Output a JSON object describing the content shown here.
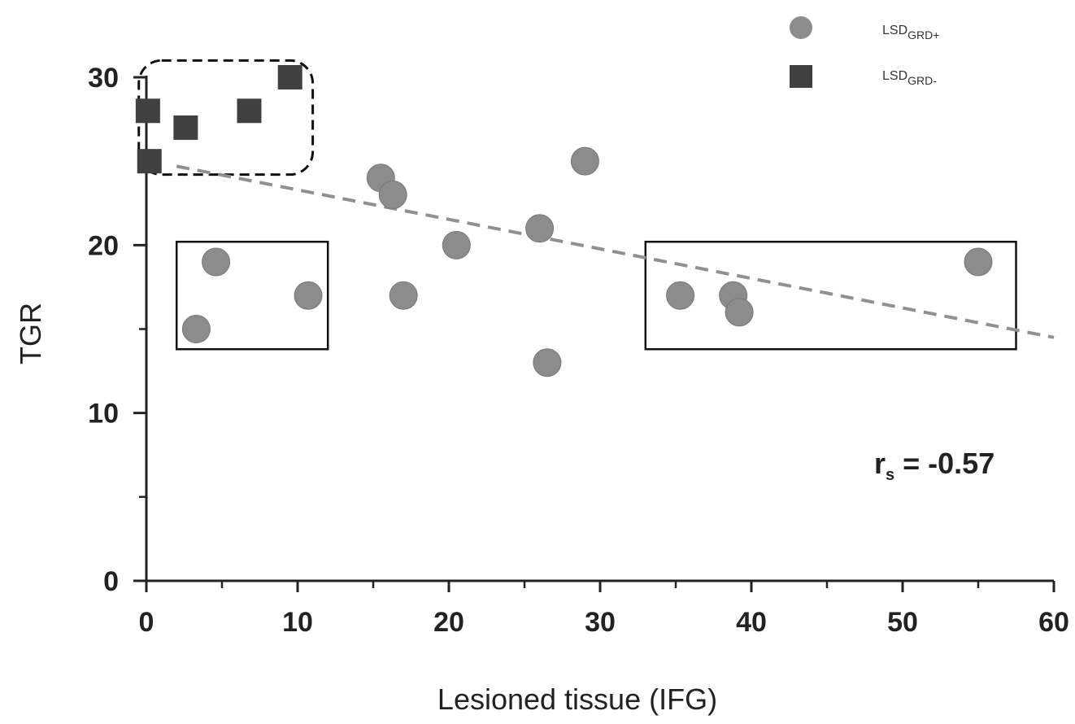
{
  "chart_data": {
    "type": "scatter",
    "xlabel": "Lesioned tissue (IFG)",
    "ylabel": "TGR",
    "xlim": [
      0,
      60
    ],
    "ylim": [
      0,
      30
    ],
    "x_ticks": [
      0,
      10,
      20,
      30,
      40,
      50,
      60
    ],
    "y_ticks": [
      0,
      10,
      20,
      30
    ],
    "grid": false,
    "legend_position": "top-right",
    "series": [
      {
        "name_prefix": "LSD",
        "name_sub": "GRD+",
        "marker": "circle",
        "color": "#8c8c8c",
        "points": [
          {
            "x": 3.3,
            "y": 15
          },
          {
            "x": 4.6,
            "y": 19
          },
          {
            "x": 10.7,
            "y": 17
          },
          {
            "x": 15.5,
            "y": 24
          },
          {
            "x": 16.3,
            "y": 23
          },
          {
            "x": 17.0,
            "y": 17
          },
          {
            "x": 20.5,
            "y": 20
          },
          {
            "x": 26.0,
            "y": 21
          },
          {
            "x": 26.5,
            "y": 13
          },
          {
            "x": 29.0,
            "y": 25
          },
          {
            "x": 35.3,
            "y": 17
          },
          {
            "x": 38.8,
            "y": 17
          },
          {
            "x": 39.2,
            "y": 16
          },
          {
            "x": 55.0,
            "y": 19
          }
        ]
      },
      {
        "name_prefix": "LSD",
        "name_sub": "GRD-",
        "marker": "square",
        "color": "#404040",
        "points": [
          {
            "x": 0.1,
            "y": 28
          },
          {
            "x": 0.2,
            "y": 25
          },
          {
            "x": 2.6,
            "y": 27
          },
          {
            "x": 6.8,
            "y": 28
          },
          {
            "x": 9.5,
            "y": 30
          }
        ]
      }
    ],
    "trendline": {
      "x": [
        2,
        60
      ],
      "y": [
        24.7,
        14.5
      ],
      "style": "dashed",
      "color": "#909090"
    },
    "annotation_main": "r",
    "annotation_sub": "s",
    "annotation_value": " = -0.57",
    "highlight_boxes": [
      {
        "style": "dashed",
        "rounded": true,
        "x": [
          -0.5,
          11
        ],
        "y": [
          24.2,
          31
        ]
      },
      {
        "style": "solid",
        "rounded": false,
        "x": [
          2,
          12
        ],
        "y": [
          13.8,
          20.2
        ]
      },
      {
        "style": "solid",
        "rounded": false,
        "x": [
          33,
          57.5
        ],
        "y": [
          13.8,
          20.2
        ]
      }
    ]
  }
}
